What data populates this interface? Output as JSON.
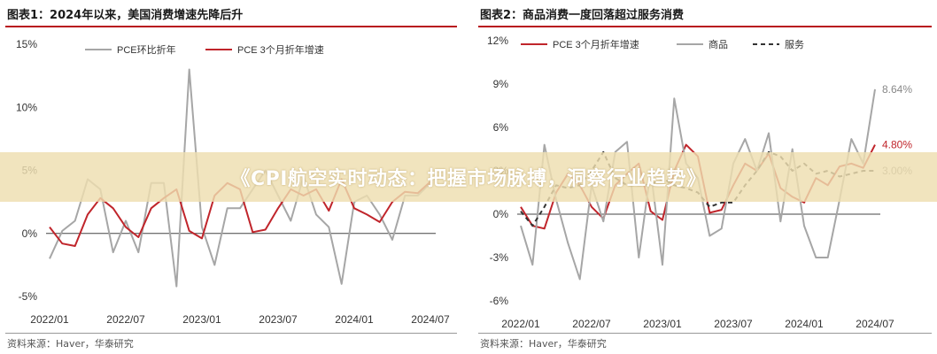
{
  "colors": {
    "gray": "#a6a6a6",
    "red": "#c0252b",
    "dark": "#333333",
    "title_rule": "#b8141e"
  },
  "banner": {
    "text": "《CPI航空实时动态：把握市场脉搏，洞察行业趋势》"
  },
  "chart_data": [
    {
      "type": "line",
      "title": "图表1：2024年以来，美国消费增速先降后升",
      "source": "资料来源：Haver，华泰研究",
      "x": [
        "2022/01",
        "2022/02",
        "2022/03",
        "2022/04",
        "2022/05",
        "2022/06",
        "2022/07",
        "2022/08",
        "2022/09",
        "2022/10",
        "2022/11",
        "2022/12",
        "2023/01",
        "2023/02",
        "2023/03",
        "2023/04",
        "2023/05",
        "2023/06",
        "2023/07",
        "2023/08",
        "2023/09",
        "2023/10",
        "2023/11",
        "2023/12",
        "2024/01",
        "2024/02",
        "2024/03",
        "2024/04",
        "2024/05",
        "2024/06",
        "2024/07"
      ],
      "xticks": [
        "2022/01",
        "2022/07",
        "2023/01",
        "2023/07",
        "2024/01",
        "2024/07"
      ],
      "yticks": [
        "-5%",
        "0%",
        "5%",
        "10%",
        "15%"
      ],
      "ylim": [
        -5,
        15
      ],
      "legend_position": "top",
      "series": [
        {
          "name": "PCE环比折年",
          "color": "#a6a6a6",
          "values": [
            -2.0,
            0.2,
            1.0,
            4.3,
            3.5,
            -1.5,
            1.0,
            -1.5,
            4.0,
            4.0,
            -4.2,
            13.0,
            0.5,
            -2.5,
            2.0,
            2.0,
            3.5,
            5.0,
            3.0,
            1.0,
            4.5,
            1.5,
            0.5,
            -4.0,
            2.5,
            3.0,
            1.5,
            -0.5,
            3.0,
            3.0,
            4.0
          ]
        },
        {
          "name": "PCE 3个月折年增速",
          "color": "#c0252b",
          "values": [
            0.5,
            -0.8,
            -1.0,
            1.5,
            2.8,
            2.0,
            0.5,
            -0.3,
            2.0,
            2.8,
            3.5,
            0.2,
            -0.4,
            3.0,
            4.0,
            3.5,
            0.1,
            0.3,
            2.0,
            3.5,
            3.0,
            3.5,
            1.8,
            4.3,
            2.0,
            1.5,
            0.9,
            2.5,
            3.3,
            3.2,
            4.1
          ]
        }
      ]
    },
    {
      "type": "line",
      "title": "图表2：商品消费一度回落超过服务消费",
      "source": "资料来源：Haver，华泰研究",
      "x": [
        "2022/01",
        "2022/02",
        "2022/03",
        "2022/04",
        "2022/05",
        "2022/06",
        "2022/07",
        "2022/08",
        "2022/09",
        "2022/10",
        "2022/11",
        "2022/12",
        "2023/01",
        "2023/02",
        "2023/03",
        "2023/04",
        "2023/05",
        "2023/06",
        "2023/07",
        "2023/08",
        "2023/09",
        "2023/10",
        "2023/11",
        "2023/12",
        "2024/01",
        "2024/02",
        "2024/03",
        "2024/04",
        "2024/05",
        "2024/06",
        "2024/07"
      ],
      "xticks": [
        "2022/01",
        "2022/07",
        "2023/01",
        "2023/07",
        "2024/01",
        "2024/07"
      ],
      "yticks": [
        "-6%",
        "-3%",
        "0%",
        "3%",
        "6%",
        "9%",
        "12%"
      ],
      "ylim": [
        -6,
        12
      ],
      "legend_position": "top",
      "end_labels": [
        "8.64%",
        "4.80%",
        "3.00%"
      ],
      "series": [
        {
          "name": "PCE 3个月折年增速",
          "color": "#c0252b",
          "dash": false,
          "values": [
            0.5,
            -0.8,
            -1.0,
            1.5,
            2.8,
            2.0,
            0.5,
            -0.3,
            2.0,
            2.8,
            3.5,
            0.2,
            -0.4,
            3.0,
            4.8,
            4.0,
            0.1,
            0.3,
            2.0,
            3.5,
            3.0,
            4.2,
            1.8,
            1.2,
            0.8,
            2.5,
            2.0,
            3.3,
            3.5,
            3.2,
            4.8
          ]
        },
        {
          "name": "商品",
          "color": "#a6a6a6",
          "dash": false,
          "values": [
            -0.8,
            -3.5,
            4.8,
            1.0,
            -2.0,
            -4.5,
            2.0,
            -0.5,
            4.3,
            5.0,
            -3.0,
            3.0,
            -3.5,
            8.0,
            3.5,
            2.5,
            -1.5,
            -1.0,
            3.5,
            5.2,
            3.0,
            5.6,
            -0.5,
            4.5,
            -0.8,
            -3.0,
            -3.0,
            1.0,
            5.2,
            3.5,
            8.64
          ]
        },
        {
          "name": "服务",
          "color": "#333333",
          "dash": true,
          "values": [
            0.2,
            -0.8,
            0.5,
            2.0,
            1.8,
            2.0,
            3.0,
            4.3,
            2.5,
            2.0,
            2.0,
            2.0,
            2.5,
            2.0,
            1.8,
            1.5,
            0.5,
            0.8,
            0.8,
            2.0,
            3.0,
            4.3,
            4.0,
            3.0,
            3.5,
            2.8,
            3.0,
            2.6,
            2.8,
            3.0,
            3.0
          ]
        }
      ]
    }
  ]
}
